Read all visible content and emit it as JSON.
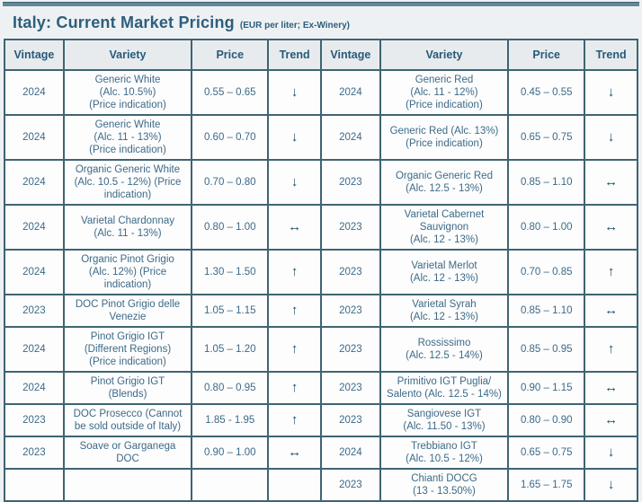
{
  "title": "Italy: Current Market Pricing",
  "subtitle": "(EUR per liter; Ex-Winery)",
  "columns": [
    "Vintage",
    "Variety",
    "Price",
    "Trend",
    "Vintage",
    "Variety",
    "Price",
    "Trend"
  ],
  "trend_glyphs": {
    "down": "↓",
    "up": "↑",
    "stable": "↔"
  },
  "colors": {
    "accent_bar": "#64879a",
    "border": "#3f6472",
    "title_text": "#2d5e7e",
    "header_bg": "#e7ebee",
    "cell_text": "#3d6a86",
    "cell_bg": "#fdfdfe",
    "page_bg": "#eef1f3"
  },
  "rows": [
    {
      "left": {
        "vintage": "2024",
        "variety": "Generic White\n(Alc. 10.5%)\n(Price indication)",
        "price": "0.55 – 0.65",
        "trend": "down"
      },
      "right": {
        "vintage": "2024",
        "variety": "Generic Red\n(Alc. 11 - 12%)\n(Price indication)",
        "price": "0.45 – 0.55",
        "trend": "down"
      }
    },
    {
      "left": {
        "vintage": "2024",
        "variety": "Generic White\n(Alc. 11 - 13%)\n(Price indication)",
        "price": "0.60 – 0.70",
        "trend": "down"
      },
      "right": {
        "vintage": "2024",
        "variety": "Generic Red (Alc. 13%)\n(Price indication)",
        "price": "0.65 – 0.75",
        "trend": "down"
      }
    },
    {
      "left": {
        "vintage": "2024",
        "variety": "Organic Generic White\n(Alc. 10.5 - 12%) (Price\nindication)",
        "price": "0.70 – 0.80",
        "trend": "down"
      },
      "right": {
        "vintage": "2023",
        "variety": "Organic Generic Red\n(Alc. 12.5 - 13%)",
        "price": "0.85 – 1.10",
        "trend": "stable"
      }
    },
    {
      "left": {
        "vintage": "2024",
        "variety": "Varietal Chardonnay\n(Alc. 11 - 13%)",
        "price": "0.80 – 1.00",
        "trend": "stable"
      },
      "right": {
        "vintage": "2023",
        "variety": "Varietal Cabernet\nSauvignon\n(Alc. 12 - 13%)",
        "price": "0.80 – 1.00",
        "trend": "stable"
      }
    },
    {
      "left": {
        "vintage": "2024",
        "variety": "Organic Pinot Grigio\n(Alc. 12%) (Price\nindication)",
        "price": "1.30 – 1.50",
        "trend": "up"
      },
      "right": {
        "vintage": "2023",
        "variety": "Varietal Merlot\n(Alc. 12 - 13%)",
        "price": "0.70 – 0.85",
        "trend": "up"
      }
    },
    {
      "left": {
        "vintage": "2023",
        "variety": "DOC Pinot Grigio delle\nVenezie",
        "price": "1.05 – 1.15",
        "trend": "up"
      },
      "right": {
        "vintage": "2023",
        "variety": "Varietal Syrah\n(Alc. 12 - 13%)",
        "price": "0.85 – 1.10",
        "trend": "stable"
      }
    },
    {
      "left": {
        "vintage": "2024",
        "variety": "Pinot Grigio IGT\n(Different Regions)\n(Price indication)",
        "price": "1.05 – 1.20",
        "trend": "up"
      },
      "right": {
        "vintage": "2023",
        "variety": "Rossissimo\n(Alc. 12.5 - 14%)",
        "price": "0.85 – 0.95",
        "trend": "up"
      }
    },
    {
      "left": {
        "vintage": "2024",
        "variety": "Pinot Grigio IGT\n(Blends)",
        "price": "0.80 – 0.95",
        "trend": "up"
      },
      "right": {
        "vintage": "2023",
        "variety": "Primitivo IGT Puglia/\nSalento (Alc. 12.5 - 14%)",
        "price": "0.90 – 1.15",
        "trend": "stable"
      }
    },
    {
      "left": {
        "vintage": "2023",
        "variety": "DOC Prosecco (Cannot\nbe sold outside of Italy)",
        "price": "1.85 - 1.95",
        "trend": "up"
      },
      "right": {
        "vintage": "2023",
        "variety": "Sangiovese IGT\n(Alc. 11.50 - 13%)",
        "price": "0.80 – 0.90",
        "trend": "stable"
      }
    },
    {
      "left": {
        "vintage": "2023",
        "variety": "Soave or Garganega\nDOC",
        "price": "0.90 – 1.00",
        "trend": "stable"
      },
      "right": {
        "vintage": "2024",
        "variety": "Trebbiano IGT\n(Alc. 10.5 - 12%)",
        "price": "0.65 – 0.75",
        "trend": "down"
      }
    },
    {
      "left": {
        "vintage": "",
        "variety": "",
        "price": "",
        "trend": ""
      },
      "right": {
        "vintage": "2023",
        "variety": "Chianti DOCG\n(13 - 13.50%)",
        "price": "1.65 – 1.75",
        "trend": "down"
      }
    }
  ]
}
